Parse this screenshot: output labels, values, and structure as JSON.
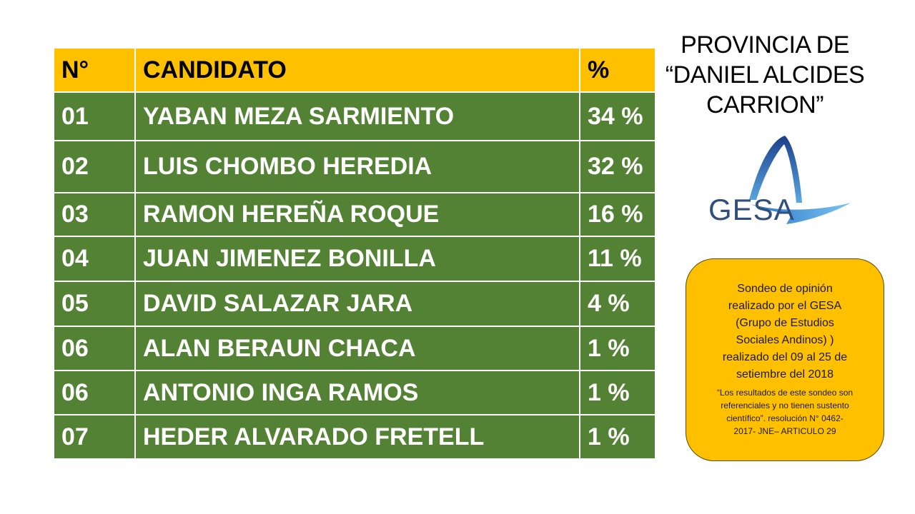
{
  "table": {
    "headers": {
      "num": "N°",
      "candidate": "CANDIDATO",
      "pct": "%"
    },
    "rows": [
      {
        "num": "01",
        "candidate": "YABAN MEZA SARMIENTO",
        "pct": "34 %"
      },
      {
        "num": "02",
        "candidate": "LUIS CHOMBO HEREDIA",
        "pct": "32 %"
      },
      {
        "num": "03",
        "candidate": "RAMON HEREÑA ROQUE",
        "pct": "16 %"
      },
      {
        "num": "04",
        "candidate": "JUAN JIMENEZ BONILLA",
        "pct": "11 %"
      },
      {
        "num": "05",
        "candidate": "DAVID SALAZAR JARA",
        "pct": "4 %"
      },
      {
        "num": "06",
        "candidate": "ALAN BERAUN CHACA",
        "pct": "1 %"
      },
      {
        "num": "06",
        "candidate": "ANTONIO INGA RAMOS",
        "pct": "1 %"
      },
      {
        "num": "07",
        "candidate": "HEDER ALVARADO FRETELL",
        "pct": "1 %"
      }
    ]
  },
  "title": {
    "line1": "PROVINCIA DE",
    "line2": "“DANIEL ALCIDES",
    "line3": "CARRION”"
  },
  "logo": {
    "text": "GESA"
  },
  "info": {
    "lines": [
      "Sondeo de opinión",
      "realizado por el GESA",
      "(Grupo de Estudios",
      "Sociales Andinos) )",
      "realizado del 09 al 25 de",
      "setiembre del 2018"
    ],
    "note_lines": [
      "“Los resultados de este sondeo son",
      "referenciales y no tienen sustento",
      "científico”. resolución N° 0462-",
      "2017- JNE– ARTICULO 29"
    ]
  },
  "colors": {
    "header_bg": "#ffc000",
    "row_bg": "#548235",
    "box_bg": "#ffc000",
    "logo_blue": "#2f4f7f"
  }
}
